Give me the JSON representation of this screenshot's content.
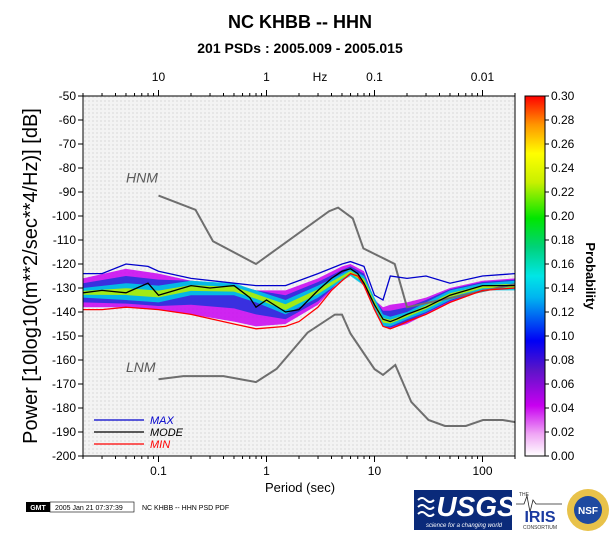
{
  "chart_data": {
    "type": "heatmap",
    "title": "NC KHBB -- HHN",
    "subtitle": "201 PSDs : 2005.009 - 2005.015",
    "xlabel": "Period (sec)",
    "x2label": "Hz",
    "ylabel": "Power [10log10(m**2/sec**4/Hz)] [dB]",
    "colorbar_label": "Probability",
    "xscale": "log",
    "xlim": [
      0.02,
      200
    ],
    "ylim": [
      -200,
      -50
    ],
    "yticks": [
      "-50",
      "-60",
      "-70",
      "-80",
      "-90",
      "-100",
      "-110",
      "-120",
      "-130",
      "-140",
      "-150",
      "-160",
      "-170",
      "-180",
      "-190",
      "-200"
    ],
    "xticks": [
      {
        "value": 0.1,
        "label": "0.1"
      },
      {
        "value": 1,
        "label": "1"
      },
      {
        "value": 10,
        "label": "10"
      },
      {
        "value": 100,
        "label": "100"
      }
    ],
    "x2ticks": [
      {
        "value": 0.1,
        "label": "10"
      },
      {
        "value": 1,
        "label": "1"
      },
      {
        "value": 10,
        "label": "0.1"
      },
      {
        "value": 100,
        "label": "0.01"
      }
    ],
    "colorbar": {
      "range": [
        0,
        0.3
      ],
      "ticks": [
        "0.00",
        "0.02",
        "0.04",
        "0.06",
        "0.08",
        "0.10",
        "0.12",
        "0.14",
        "0.16",
        "0.18",
        "0.20",
        "0.22",
        "0.24",
        "0.26",
        "0.28",
        "0.30"
      ]
    },
    "reference_curves": [
      {
        "name": "HNM",
        "label": "HNM",
        "x": [
          0.1,
          0.22,
          0.32,
          0.8,
          3.8,
          4.6,
          6.3,
          7.9,
          15.4,
          20,
          354.8
        ],
        "y": [
          -91.5,
          -97.4,
          -110.5,
          -120,
          -98,
          -96.5,
          -101,
          -113.5,
          -120,
          -138,
          -126
        ]
      },
      {
        "name": "LNM",
        "label": "LNM",
        "x": [
          0.1,
          0.17,
          0.4,
          0.8,
          1.24,
          2.4,
          4.3,
          5,
          6,
          10,
          12,
          15.6,
          21.9,
          31.6,
          45,
          70,
          101,
          154,
          328,
          600
        ],
        "y": [
          -168,
          -166.7,
          -166.7,
          -169.2,
          -163.7,
          -148.6,
          -141.1,
          -141.1,
          -149,
          -163.8,
          -166.2,
          -162.1,
          -177.5,
          -185,
          -187.5,
          -187.5,
          -185,
          -185,
          -187.5,
          -184.4
        ]
      }
    ],
    "series": [
      {
        "name": "MAX",
        "x": [
          0.02,
          0.03,
          0.05,
          0.08,
          0.1,
          0.2,
          0.5,
          0.8,
          1.5,
          3,
          5,
          6,
          8,
          10,
          12,
          14,
          20,
          30,
          50,
          100,
          200
        ],
        "y": [
          -124,
          -124,
          -120,
          -121,
          -123,
          -126,
          -128,
          -129,
          -129,
          -124,
          -120,
          -119,
          -121,
          -133,
          -135,
          -125,
          -126,
          -125,
          -128,
          -125,
          -124
        ]
      },
      {
        "name": "MODE",
        "x": [
          0.02,
          0.03,
          0.05,
          0.08,
          0.1,
          0.2,
          0.3,
          0.5,
          0.7,
          0.8,
          1,
          1.5,
          2,
          3,
          4,
          5,
          6,
          7,
          8,
          10,
          12,
          14,
          16,
          20,
          30,
          50,
          100,
          200
        ],
        "y": [
          -132,
          -131,
          -132,
          -128,
          -133,
          -129,
          -130,
          -129,
          -134,
          -138,
          -135,
          -140,
          -139,
          -131,
          -126,
          -123,
          -122,
          -124,
          -128,
          -137,
          -143,
          -144,
          -143,
          -141,
          -138,
          -133,
          -129,
          -129
        ]
      },
      {
        "name": "MIN",
        "x": [
          0.02,
          0.03,
          0.05,
          0.1,
          0.2,
          0.5,
          0.8,
          1.5,
          2,
          3,
          4,
          5,
          6,
          7,
          8,
          10,
          12,
          14,
          16,
          20,
          30,
          50,
          100,
          200
        ],
        "y": [
          -139,
          -139,
          -138,
          -139,
          -141,
          -145,
          -147,
          -146,
          -144,
          -138,
          -131,
          -127,
          -124,
          -125,
          -129,
          -139,
          -146,
          -147,
          -146,
          -144,
          -141,
          -136,
          -131,
          -130
        ]
      }
    ],
    "density_band": {
      "x": [
        0.02,
        0.05,
        0.1,
        0.2,
        0.5,
        0.8,
        1.5,
        3,
        5,
        6,
        8,
        10,
        12,
        14,
        20,
        30,
        50,
        100,
        200
      ],
      "upper": [
        -126,
        -122,
        -124,
        -127,
        -129,
        -131,
        -131,
        -126,
        -121,
        -120,
        -123,
        -135,
        -138,
        -137,
        -136,
        -134,
        -130,
        -127,
        -126
      ],
      "core_upper": [
        -130,
        -128,
        -129,
        -127,
        -128,
        -131,
        -135,
        -129,
        -124,
        -122,
        -125,
        -134,
        -141,
        -142,
        -140,
        -136,
        -131,
        -128,
        -127
      ],
      "core_lower": [
        -134,
        -135,
        -136,
        -133,
        -133,
        -136,
        -141,
        -134,
        -127,
        -125,
        -129,
        -139,
        -146,
        -146,
        -143,
        -140,
        -135,
        -131,
        -131
      ],
      "lower": [
        -138,
        -138,
        -139,
        -141,
        -144,
        -146,
        -145,
        -137,
        -126,
        -124,
        -128,
        -138,
        -146,
        -147,
        -145,
        -141,
        -136,
        -131,
        -130
      ]
    },
    "legend": [
      {
        "label": "MAX",
        "color": "#0000cc"
      },
      {
        "label": "MODE",
        "color": "#000000"
      },
      {
        "label": "MIN",
        "color": "#ff0000"
      }
    ],
    "colors": {
      "max": "#0000cc",
      "mode": "#000000",
      "min": "#ff0000",
      "nm": "#6e6e6e",
      "background": "#f2f2f2"
    }
  },
  "footer": {
    "gmt_label": "GMT",
    "timestamp": "2005 Jan 21 07:37:39",
    "caption": "NC KHBB -- HHN PSD PDF"
  },
  "logos": {
    "usgs": "USGS",
    "usgs_tagline": "science for a changing world",
    "iris_the": "THE",
    "iris": "IRIS",
    "iris_consortium": "CONSORTIUM",
    "nsf": "NSF"
  }
}
